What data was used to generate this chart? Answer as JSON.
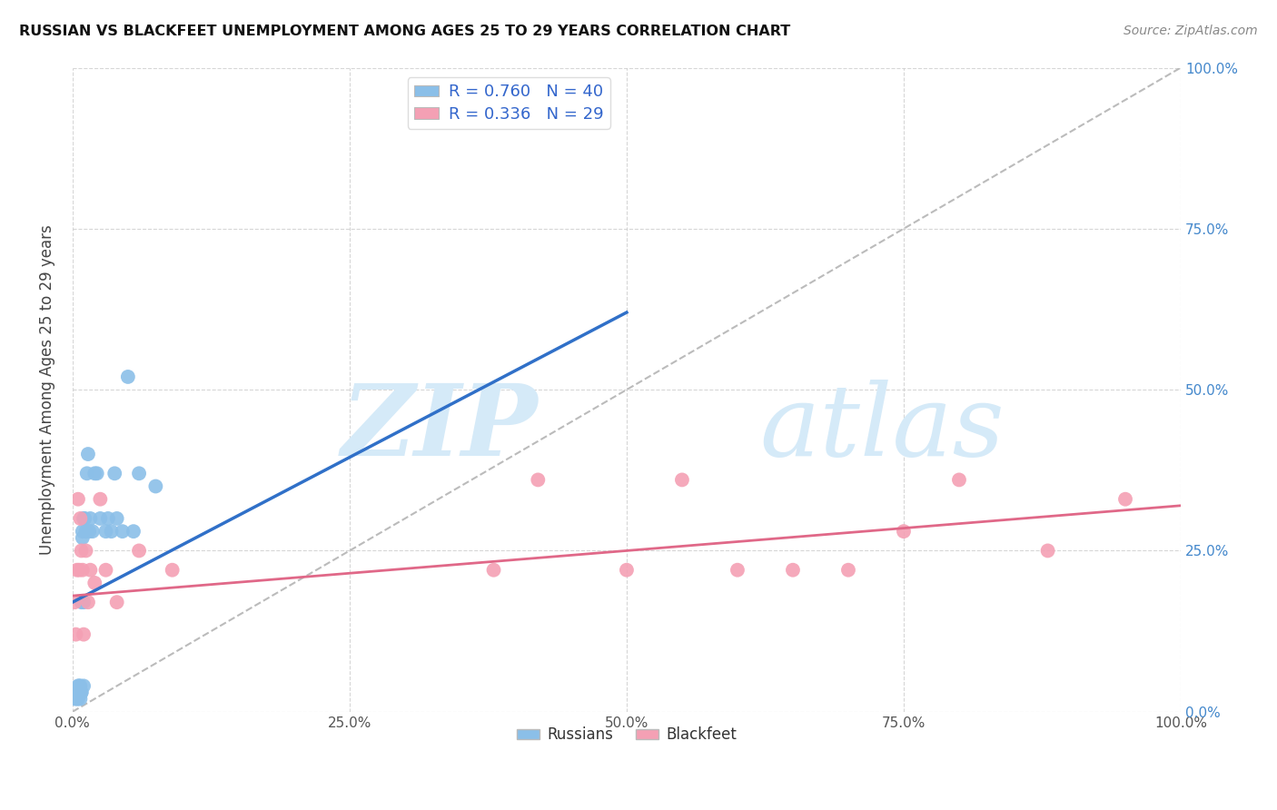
{
  "title": "RUSSIAN VS BLACKFEET UNEMPLOYMENT AMONG AGES 25 TO 29 YEARS CORRELATION CHART",
  "source": "Source: ZipAtlas.com",
  "ylabel": "Unemployment Among Ages 25 to 29 years",
  "xlim": [
    0,
    1
  ],
  "ylim": [
    0,
    1
  ],
  "x_ticks": [
    0,
    0.25,
    0.5,
    0.75,
    1.0
  ],
  "y_ticks": [
    0,
    0.25,
    0.5,
    0.75,
    1.0
  ],
  "x_tick_labels": [
    "0.0%",
    "25.0%",
    "50.0%",
    "75.0%",
    "100.0%"
  ],
  "y_tick_labels_right": [
    "0.0%",
    "25.0%",
    "50.0%",
    "75.0%",
    "100.0%"
  ],
  "russian_R": 0.76,
  "russian_N": 40,
  "blackfeet_R": 0.336,
  "blackfeet_N": 29,
  "russian_color": "#8BBFE8",
  "blackfeet_color": "#F4A0B4",
  "russian_line_color": "#3070C8",
  "blackfeet_line_color": "#E06888",
  "diagonal_color": "#BBBBBB",
  "watermark_zip": "ZIP",
  "watermark_atlas": "atlas",
  "watermark_color": "#D5EAF8",
  "background_color": "#FFFFFF",
  "russian_x": [
    0.002,
    0.003,
    0.004,
    0.004,
    0.005,
    0.005,
    0.005,
    0.006,
    0.006,
    0.007,
    0.007,
    0.007,
    0.008,
    0.008,
    0.008,
    0.009,
    0.009,
    0.01,
    0.01,
    0.01,
    0.011,
    0.012,
    0.013,
    0.014,
    0.015,
    0.016,
    0.018,
    0.02,
    0.022,
    0.025,
    0.03,
    0.032,
    0.035,
    0.038,
    0.04,
    0.045,
    0.05,
    0.055,
    0.06,
    0.075
  ],
  "russian_y": [
    0.02,
    0.03,
    0.03,
    0.02,
    0.04,
    0.03,
    0.02,
    0.03,
    0.04,
    0.03,
    0.04,
    0.02,
    0.03,
    0.17,
    0.03,
    0.27,
    0.28,
    0.3,
    0.17,
    0.04,
    0.3,
    0.28,
    0.37,
    0.4,
    0.28,
    0.3,
    0.28,
    0.37,
    0.37,
    0.3,
    0.28,
    0.3,
    0.28,
    0.37,
    0.3,
    0.28,
    0.52,
    0.28,
    0.37,
    0.35
  ],
  "russian_line_x0": 0.0,
  "russian_line_y0": 0.17,
  "russian_line_x1": 0.5,
  "russian_line_y1": 0.62,
  "blackfeet_x": [
    0.002,
    0.003,
    0.004,
    0.005,
    0.006,
    0.007,
    0.008,
    0.009,
    0.01,
    0.012,
    0.014,
    0.016,
    0.02,
    0.025,
    0.03,
    0.04,
    0.06,
    0.09,
    0.38,
    0.42,
    0.5,
    0.55,
    0.6,
    0.65,
    0.7,
    0.75,
    0.8,
    0.88,
    0.95
  ],
  "blackfeet_y": [
    0.17,
    0.12,
    0.22,
    0.33,
    0.22,
    0.3,
    0.25,
    0.22,
    0.12,
    0.25,
    0.17,
    0.22,
    0.2,
    0.33,
    0.22,
    0.17,
    0.25,
    0.22,
    0.22,
    0.36,
    0.22,
    0.36,
    0.22,
    0.22,
    0.22,
    0.28,
    0.36,
    0.25,
    0.33
  ],
  "blackfeet_line_x0": 0.0,
  "blackfeet_line_y0": 0.18,
  "blackfeet_line_x1": 1.0,
  "blackfeet_line_y1": 0.32
}
